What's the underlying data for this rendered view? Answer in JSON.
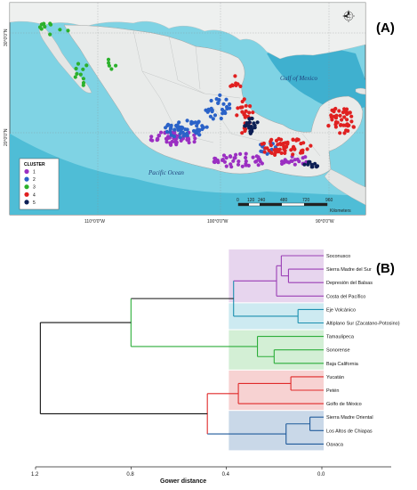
{
  "panels": {
    "a": "(A)",
    "b": "(B)"
  },
  "map": {
    "legend_title": "CLUSTER",
    "clusters": [
      {
        "label": "1",
        "color": "#9b2fc2"
      },
      {
        "label": "2",
        "color": "#2a62c8"
      },
      {
        "label": "3",
        "color": "#2bb12b"
      },
      {
        "label": "4",
        "color": "#e02020"
      },
      {
        "label": "5",
        "color": "#0d1f55"
      }
    ],
    "ocean_labels": {
      "gulf": "Gulf of Mexico",
      "pacific": "Pacific Ocean"
    },
    "latitudes": [
      "30°0'0\"N",
      "20°0'0\"N"
    ],
    "longitudes": [
      "110°0'0\"W",
      "100°0'0\"W",
      "90°0'0\"W"
    ],
    "scale": {
      "ticks": [
        "0",
        "120",
        "240",
        "480",
        "720",
        "960"
      ],
      "unit": "Kilometers"
    },
    "north_icon": "north-arrow-icon"
  },
  "dendrogram": {
    "axis_title": "Gower distance",
    "ticks": [
      "1.2",
      "0.8",
      "0.4",
      "0.0"
    ],
    "leaves": [
      {
        "name": "Soconusco",
        "group": 0
      },
      {
        "name": "Sierra Madre del Sur",
        "group": 0
      },
      {
        "name": "Depresión del Balsas",
        "group": 0
      },
      {
        "name": "Costa del Pacífico",
        "group": 0
      },
      {
        "name": "Eje Volcánico",
        "group": 1
      },
      {
        "name": "Altiplano Sur (Zacatano-Potosino)",
        "group": 1
      },
      {
        "name": "Tamaulipeca",
        "group": 2
      },
      {
        "name": "Sonorense",
        "group": 2
      },
      {
        "name": "Baja California",
        "group": 2
      },
      {
        "name": "Yucatán",
        "group": 3
      },
      {
        "name": "Petén",
        "group": 3
      },
      {
        "name": "Golfo de México",
        "group": 3
      },
      {
        "name": "Sierra Madre Oriental",
        "group": 4
      },
      {
        "name": "Los Altos de Chiapas",
        "group": 4
      },
      {
        "name": "Oaxaca",
        "group": 4
      }
    ],
    "group_colors": [
      "#9b3fb5",
      "#1b8fb0",
      "#2cae3a",
      "#e02a2a",
      "#1f5a9a"
    ],
    "group_fills": [
      "#e7d5ee",
      "#cdeaf1",
      "#d3efd5",
      "#f7d2d2",
      "#c9d8e8"
    ],
    "merges": [
      {
        "a": 1,
        "b": 2,
        "h": 0.14
      },
      {
        "a": 0,
        "b": 15,
        "h": 0.17
      },
      {
        "a": 3,
        "b": 16,
        "h": 0.19
      },
      {
        "a": 4,
        "b": 5,
        "h": 0.1
      },
      {
        "a": 17,
        "b": 18,
        "h": 0.37
      },
      {
        "a": 7,
        "b": 8,
        "h": 0.2
      },
      {
        "a": 6,
        "b": 20,
        "h": 0.27
      },
      {
        "a": 19,
        "b": 21,
        "h": 0.8
      },
      {
        "a": 9,
        "b": 10,
        "h": 0.13
      },
      {
        "a": 11,
        "b": 23,
        "h": 0.35
      },
      {
        "a": 12,
        "b": 13,
        "h": 0.05
      },
      {
        "a": 14,
        "b": 25,
        "h": 0.15
      },
      {
        "a": 24,
        "b": 26,
        "h": 0.48
      },
      {
        "a": 22,
        "b": 27,
        "h": 1.18
      }
    ]
  }
}
